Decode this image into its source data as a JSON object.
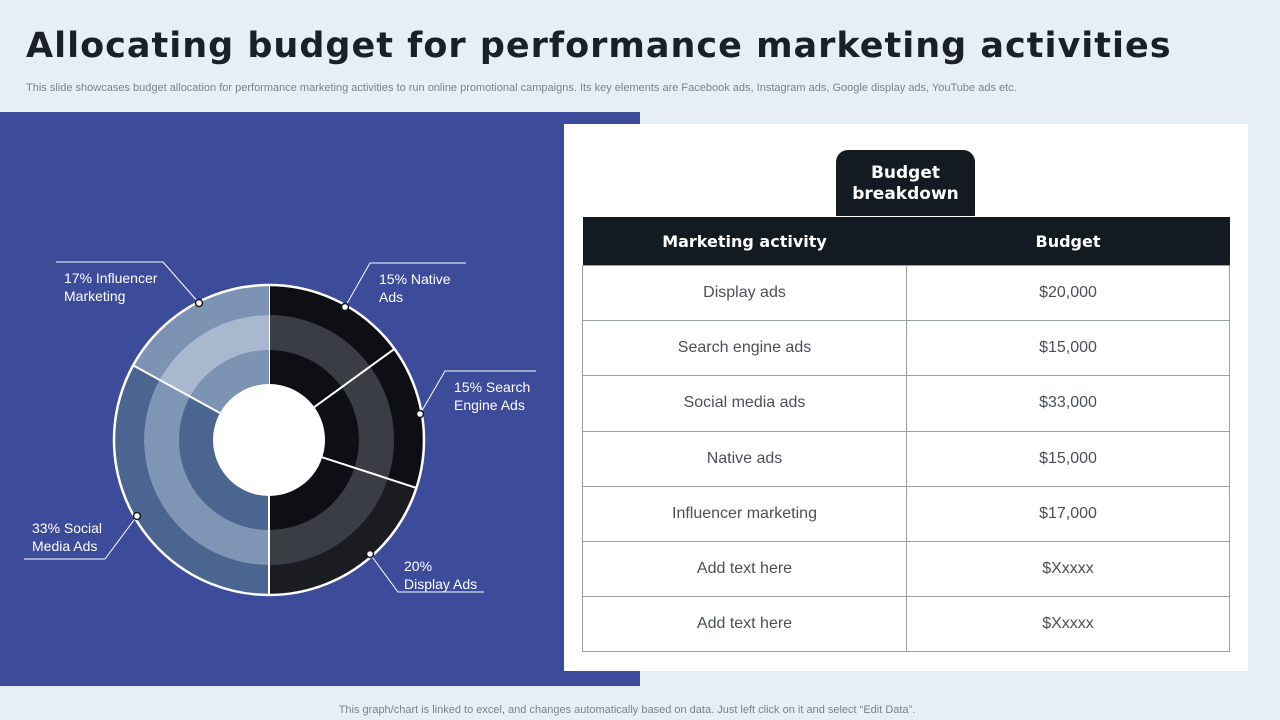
{
  "slide": {
    "title": "Allocating budget for performance marketing activities",
    "subtitle": "This slide showcases budget allocation for performance marketing activities to run online promotional campaigns. Its key elements are Facebook ads, Instagram ads, Google display ads, YouTube ads etc.",
    "footer": "This graph/chart is linked to excel,  and changes automatically based on data. Just left click on it and select “Edit Data”."
  },
  "chart_data": {
    "type": "pie",
    "style": "nested donut",
    "slices": [
      {
        "label": "15% Native\nAds",
        "value": 15,
        "colors": [
          "#0d0f14",
          "#3a3d44",
          "#0d0f14"
        ]
      },
      {
        "label": "15% Search\nEngine Ads",
        "value": 15,
        "colors": [
          "#0d0f14",
          "#3a3d44",
          "#0d0f14"
        ]
      },
      {
        "label": "20%\nDisplay Ads",
        "value": 20,
        "colors": [
          "#0d0f14",
          "#3a3d44",
          "#1a1c22"
        ]
      },
      {
        "label": "33% Social\nMedia Ads",
        "value": 33,
        "colors": [
          "#4a6690",
          "#7f95b5",
          "#4a6690"
        ]
      },
      {
        "label": "17% Influencer\nMarketing",
        "value": 17,
        "colors": [
          "#7d93b3",
          "#a8b8cf",
          "#7d93b3"
        ]
      }
    ]
  },
  "table": {
    "tab_label": "Budget\nbreakdown",
    "headers": [
      "Marketing activity",
      "Budget"
    ],
    "rows": [
      [
        "Display ads",
        "$20,000"
      ],
      [
        "Search engine ads",
        "$15,000"
      ],
      [
        "Social media ads",
        "$33,000"
      ],
      [
        "Native ads",
        "$15,000"
      ],
      [
        "Influencer  marketing",
        "$17,000"
      ],
      [
        "Add text here",
        "$Xxxxx"
      ],
      [
        "Add text here",
        "$Xxxxx"
      ]
    ]
  },
  "colors": {
    "background": "#e8eef5",
    "panel": "#3c4b9a",
    "dark": "#141a22"
  }
}
